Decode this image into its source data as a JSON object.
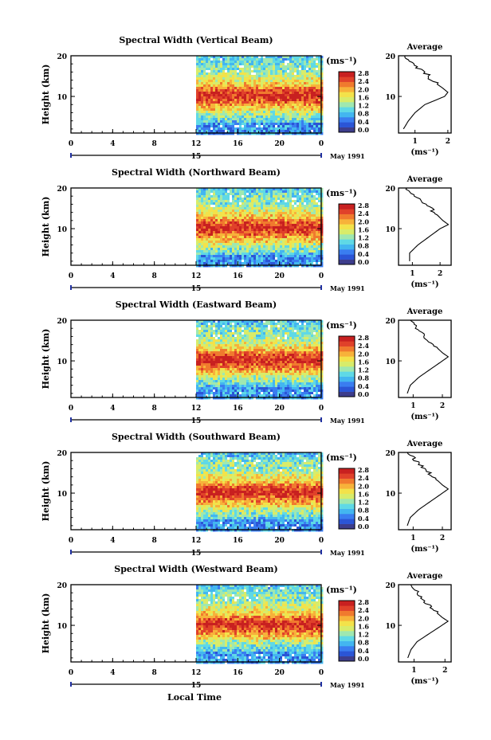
{
  "figure": {
    "xlabel": "Local Time",
    "date_label": "May 1991",
    "day_label": "15",
    "colorbar_unit": "(ms⁻¹)",
    "colorbar_ticks": [
      "2.8",
      "2.4",
      "2.0",
      "1.6",
      "1.2",
      "0.8",
      "0.4",
      "0.0"
    ],
    "avg_title": "Average",
    "avg_xlabel": "(ms⁻¹)",
    "ylabel": "Height (km)",
    "x_ticks": [
      "0",
      "4",
      "8",
      "12",
      "16",
      "20",
      "0"
    ],
    "y_ticks": [
      "20",
      "10"
    ],
    "colors": {
      "scale": [
        "#3d3d8c",
        "#2b55d6",
        "#3a7df0",
        "#43b6f0",
        "#5fd9e6",
        "#9fe8b0",
        "#d8ec6a",
        "#f3e24a",
        "#f7b23a",
        "#f07a2e",
        "#e0412a",
        "#c82020"
      ]
    }
  },
  "chart_data": [
    {
      "type": "heatmap",
      "title": "Spectral Width (Vertical Beam)",
      "xlabel": "Local Time",
      "ylabel": "Height (km)",
      "x_range_hours": [
        0,
        24
      ],
      "data_start_hour": 12,
      "ylim": [
        1,
        20
      ],
      "colorbar_range": [
        0.0,
        3.0
      ],
      "average_profile": {
        "xlim": [
          0.5,
          2.1
        ],
        "x_ticks": [
          "1",
          "2"
        ],
        "height": [
          2,
          4,
          6,
          8,
          10,
          11,
          12,
          14,
          16,
          18,
          20
        ],
        "value": [
          0.65,
          0.8,
          1.0,
          1.3,
          1.9,
          2.0,
          1.85,
          1.5,
          1.3,
          0.9,
          0.7
        ]
      }
    },
    {
      "type": "heatmap",
      "title": "Spectral Width (Northward Beam)",
      "xlabel": "Local Time",
      "ylabel": "Height (km)",
      "x_range_hours": [
        0,
        24
      ],
      "data_start_hour": 12,
      "ylim": [
        1,
        20
      ],
      "colorbar_range": [
        0.0,
        3.0
      ],
      "average_profile": {
        "xlim": [
          0.5,
          2.4
        ],
        "x_ticks": [
          "1",
          "2"
        ],
        "height": [
          2,
          4,
          6,
          8,
          10,
          11,
          12,
          14,
          16,
          18,
          20
        ],
        "value": [
          0.9,
          0.9,
          1.2,
          1.6,
          2.0,
          2.3,
          2.1,
          1.8,
          1.5,
          1.1,
          0.8
        ]
      }
    },
    {
      "type": "heatmap",
      "title": "Spectral Width (Eastward Beam)",
      "xlabel": "Local Time",
      "ylabel": "Height (km)",
      "x_range_hours": [
        0,
        24
      ],
      "data_start_hour": 12,
      "ylim": [
        1,
        20
      ],
      "colorbar_range": [
        0.0,
        3.0
      ],
      "average_profile": {
        "xlim": [
          0.5,
          2.3
        ],
        "x_ticks": [
          "1",
          "2"
        ],
        "height": [
          2,
          4,
          6,
          8,
          10,
          11,
          12,
          14,
          16,
          18,
          20
        ],
        "value": [
          0.8,
          0.9,
          1.2,
          1.6,
          2.0,
          2.2,
          2.0,
          1.7,
          1.4,
          1.1,
          0.9
        ]
      }
    },
    {
      "type": "heatmap",
      "title": "Spectral Width (Southward Beam)",
      "xlabel": "Local Time",
      "ylabel": "Height (km)",
      "x_range_hours": [
        0,
        24
      ],
      "data_start_hour": 12,
      "ylim": [
        1,
        20
      ],
      "colorbar_range": [
        0.0,
        3.0
      ],
      "average_profile": {
        "xlim": [
          0.5,
          2.3
        ],
        "x_ticks": [
          "1",
          "2"
        ],
        "height": [
          2,
          4,
          6,
          8,
          10,
          11,
          12,
          14,
          16,
          18,
          20
        ],
        "value": [
          0.8,
          0.9,
          1.2,
          1.6,
          2.0,
          2.2,
          2.0,
          1.7,
          1.4,
          1.1,
          0.8
        ]
      }
    },
    {
      "type": "heatmap",
      "title": "Spectral Width (Westward Beam)",
      "xlabel": "Local Time",
      "ylabel": "Height (km)",
      "x_range_hours": [
        0,
        24
      ],
      "data_start_hour": 12,
      "ylim": [
        1,
        20
      ],
      "colorbar_range": [
        0.0,
        3.0
      ],
      "average_profile": {
        "xlim": [
          0.5,
          2.2
        ],
        "x_ticks": [
          "1",
          "2"
        ],
        "height": [
          2,
          4,
          6,
          8,
          10,
          11,
          12,
          14,
          16,
          18,
          20
        ],
        "value": [
          0.8,
          0.9,
          1.1,
          1.5,
          1.9,
          2.1,
          1.9,
          1.6,
          1.3,
          1.1,
          0.9
        ]
      }
    }
  ]
}
